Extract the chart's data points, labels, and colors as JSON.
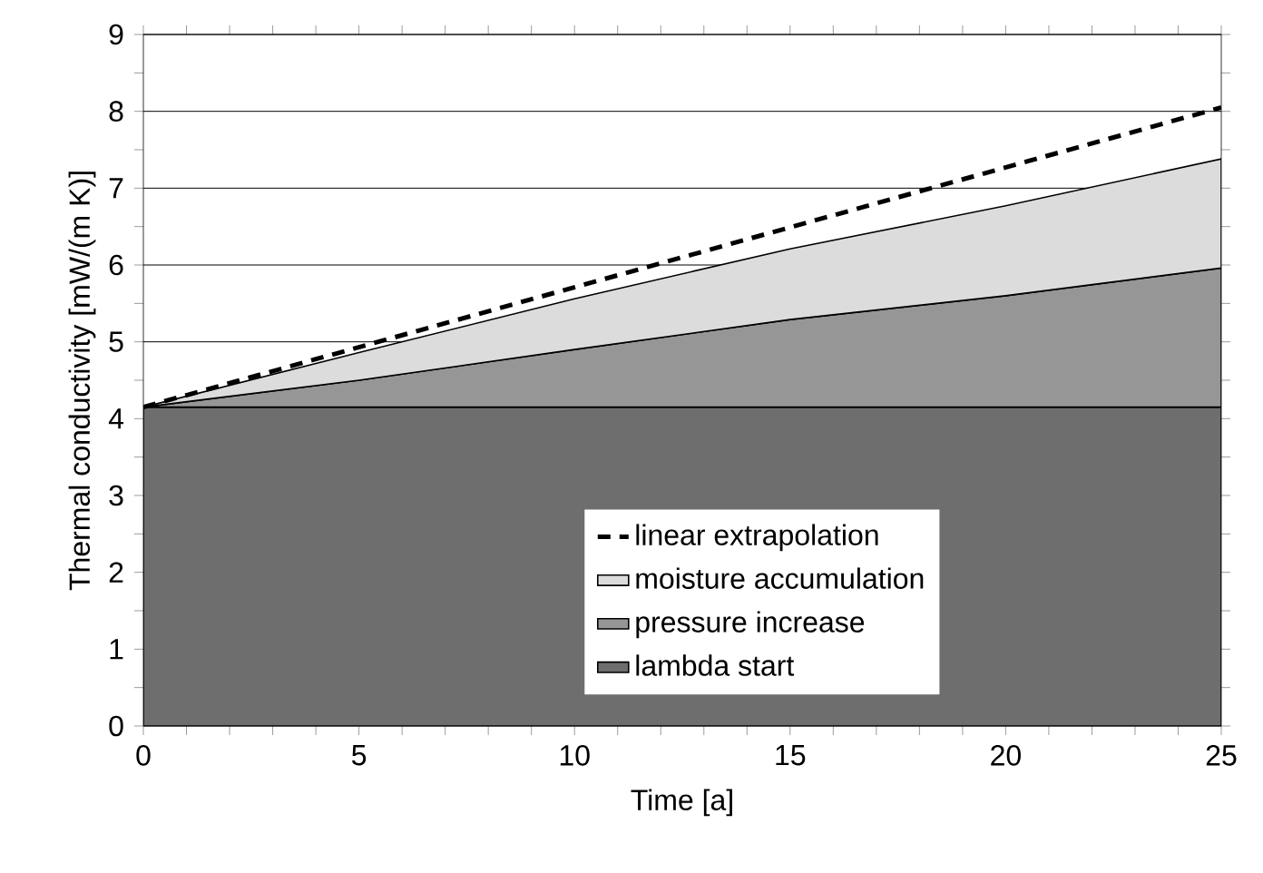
{
  "chart_data": {
    "type": "area",
    "stacked": true,
    "xlabel": "Time [a]",
    "ylabel": "Thermal conductivity [mW/(m K)]",
    "x": [
      0,
      5,
      10,
      15,
      20,
      25
    ],
    "xlim": [
      0,
      25
    ],
    "xticks": [
      0,
      5,
      10,
      15,
      20,
      25
    ],
    "ylim": [
      0,
      9
    ],
    "yticks": [
      0,
      1,
      2,
      3,
      4,
      5,
      6,
      7,
      8,
      9
    ],
    "grid": "y",
    "legend": "bottom right",
    "series": [
      {
        "name": "lambda start",
        "color": "#6e6e6e",
        "values": [
          4.15,
          4.15,
          4.15,
          4.15,
          4.15,
          4.15
        ]
      },
      {
        "name": "pressure increase",
        "color": "#969696",
        "values": [
          0,
          0.35,
          0.75,
          1.14,
          1.45,
          1.81
        ]
      },
      {
        "name": "moisture accumulation",
        "color": "#dcdcdc",
        "values": [
          0,
          0.36,
          0.66,
          0.92,
          1.17,
          1.42
        ]
      },
      {
        "name": "linear extrapolation",
        "type": "line",
        "x": [
          0,
          25
        ],
        "values": [
          4.15,
          8.05
        ],
        "color": "#000000",
        "line_style": "dashed"
      }
    ]
  }
}
